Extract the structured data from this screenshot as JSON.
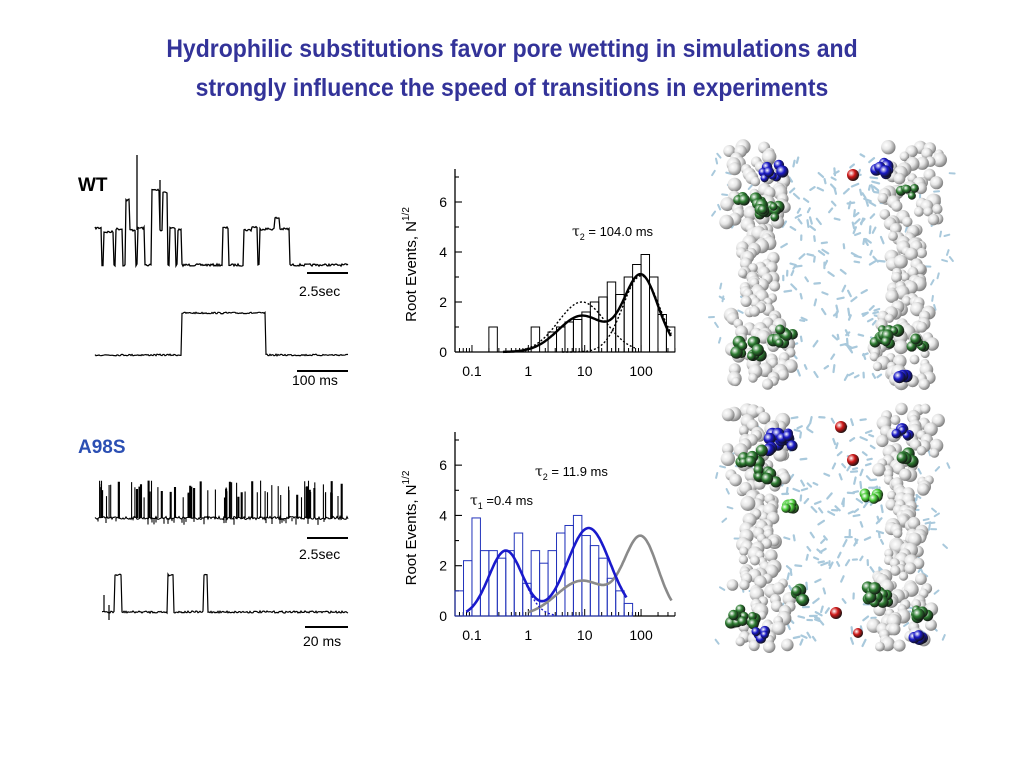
{
  "title": {
    "line1": "Hydrophilic substitutions favor pore wetting in simulations and",
    "line2": "strongly influence the speed of transitions  in experiments"
  },
  "panels": {
    "wt": {
      "label": "WT",
      "scalebar_long": "2.5sec",
      "scalebar_short": "100 ms",
      "histogram": {
        "ylabel_text": "Root  Events, N",
        "ylabel_sup": "1/2",
        "tau2_label": "τ",
        "tau2_sub": "2",
        "tau2_value": " = 104.0 ms"
      },
      "structure": "wetted pore molecular snapshot"
    },
    "a98s": {
      "label": "A98S",
      "scalebar_long": "2.5sec",
      "scalebar_short": "20 ms",
      "histogram": {
        "ylabel_text": "Root  Events, N",
        "ylabel_sup": "1/2",
        "tau1_label": "τ",
        "tau1_sub": "1",
        "tau1_value": " =0.4 ms",
        "tau2_label": "τ",
        "tau2_sub": "2",
        "tau2_value": " = 11.9 ms"
      },
      "structure": "wetted pore molecular snapshot"
    }
  },
  "colors": {
    "title": "#333399",
    "a98s_label": "#2b4fb3",
    "a98s_fit": "#1a1acc",
    "wt_fit_reference": "#888888",
    "residue_hydrophobic": "#e6e6e6",
    "residue_polar": "#2e7d32",
    "residue_charged": "#1a1ac8",
    "oxygen": "#d01818",
    "water": "#a9c9dc"
  },
  "chart_data": [
    {
      "type": "bar",
      "name": "WT dwell-time histogram",
      "xscale": "log",
      "x_ticks": [
        "0.1",
        "1",
        "10",
        "100"
      ],
      "y_ticks": [
        "0",
        "2",
        "4",
        "6"
      ],
      "xlim": [
        0.05,
        400
      ],
      "ylim": [
        0,
        7
      ],
      "xlabel": "",
      "ylabel": "Root  Events, N1/2",
      "bins_log10_left": [
        -0.7,
        -0.55,
        -0.4,
        -0.25,
        -0.1,
        0.05,
        0.2,
        0.35,
        0.5,
        0.65,
        0.8,
        0.95,
        1.1,
        1.25,
        1.4,
        1.55,
        1.7,
        1.85,
        2.0,
        2.15,
        2.3,
        2.45
      ],
      "bin_width_log10": 0.15,
      "counts": [
        1.0,
        0,
        0,
        0,
        0,
        1.0,
        0,
        0.8,
        1.0,
        1.2,
        1.3,
        1.6,
        2.0,
        2.2,
        2.8,
        2.3,
        3.0,
        3.5,
        3.9,
        3.0,
        1.5,
        1.0
      ],
      "annotations": [
        "τ2 = 104.0 ms"
      ]
    },
    {
      "type": "bar",
      "name": "A98S dwell-time histogram",
      "xscale": "log",
      "x_ticks": [
        "0.1",
        "1",
        "10",
        "100"
      ],
      "y_ticks": [
        "0",
        "2",
        "4",
        "6"
      ],
      "xlim": [
        0.05,
        400
      ],
      "ylim": [
        0,
        7
      ],
      "xlabel": "",
      "ylabel": "Root  Events, N1/2",
      "bins_log10_left": [
        -1.3,
        -1.15,
        -1.0,
        -0.85,
        -0.7,
        -0.55,
        -0.4,
        -0.25,
        -0.1,
        0.05,
        0.2,
        0.35,
        0.5,
        0.65,
        0.8,
        0.95,
        1.1,
        1.25,
        1.4,
        1.55,
        1.7
      ],
      "bin_width_log10": 0.15,
      "counts": [
        1.0,
        2.2,
        3.9,
        2.6,
        2.6,
        2.3,
        2.6,
        3.3,
        1.3,
        2.6,
        2.1,
        2.6,
        3.3,
        3.6,
        4.0,
        3.2,
        2.8,
        2.3,
        1.5,
        1.0,
        0.5
      ],
      "annotations": [
        "τ1 =0.4 ms",
        "τ2 = 11.9 ms"
      ]
    }
  ]
}
